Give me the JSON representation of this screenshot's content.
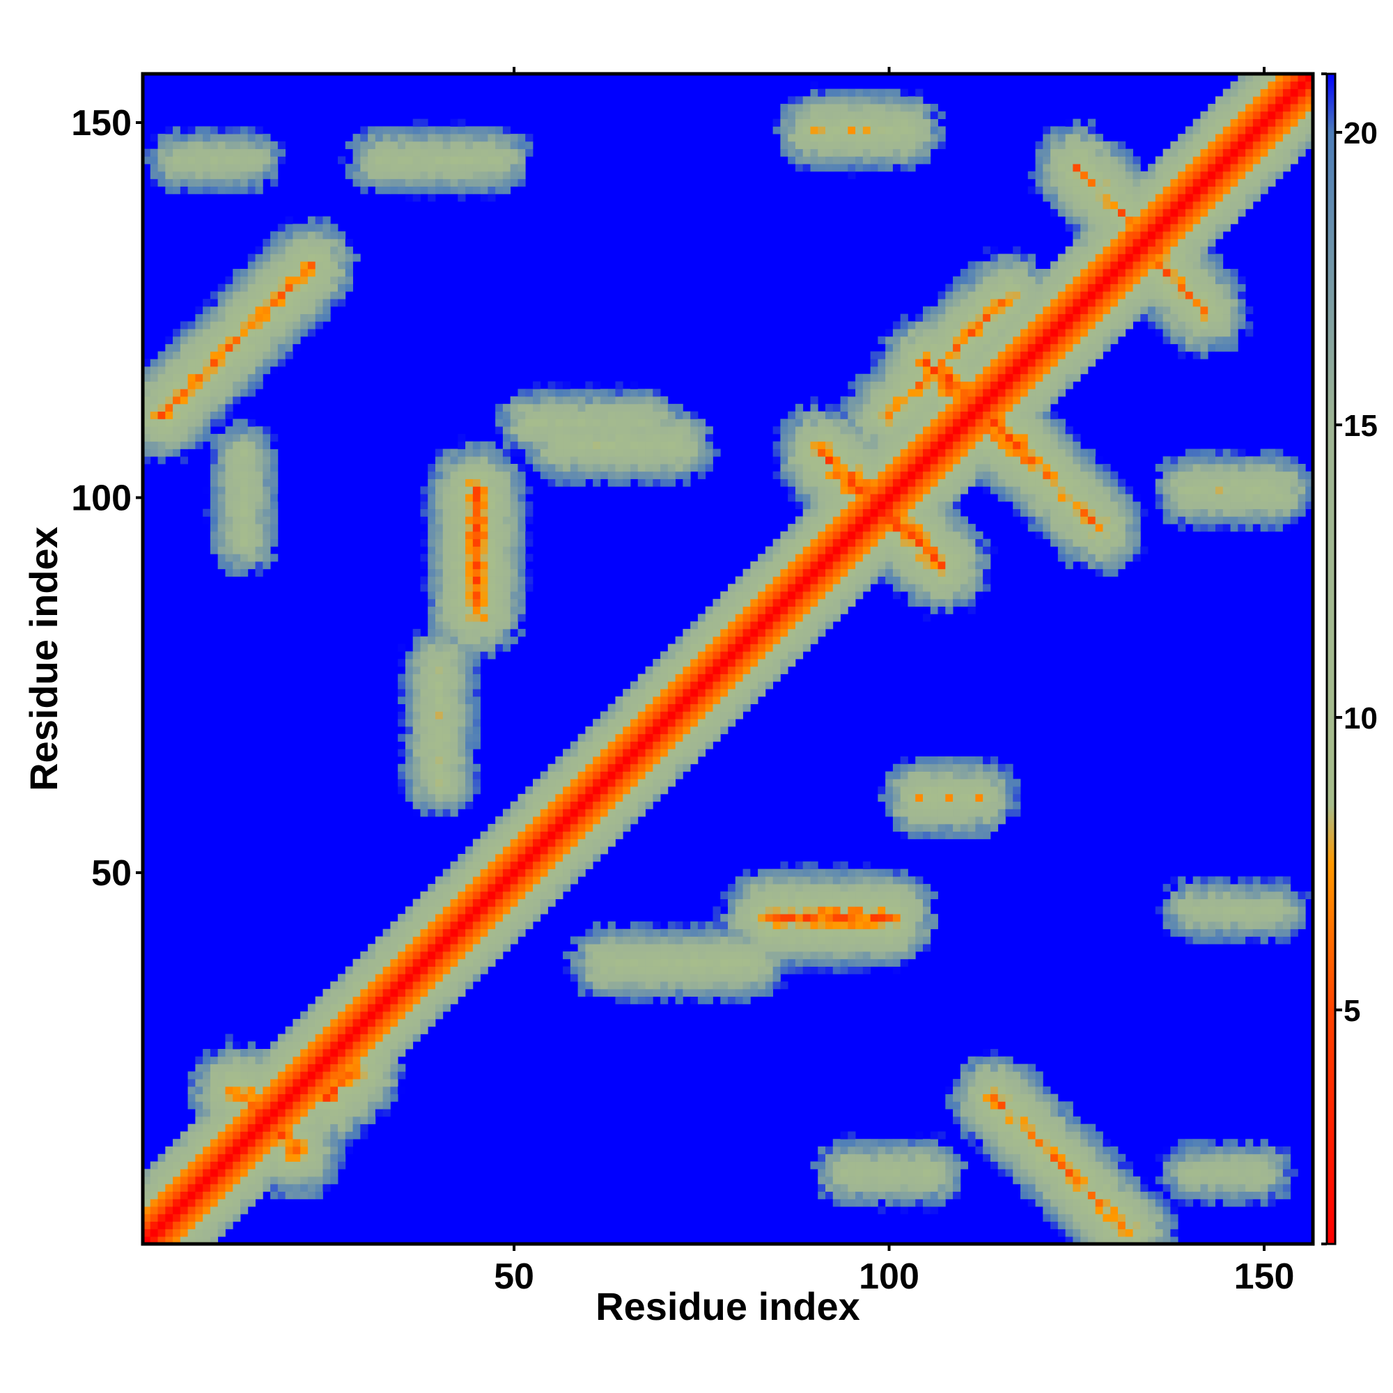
{
  "chart_data": {
    "type": "heatmap",
    "title": "",
    "xlabel": "Residue index",
    "ylabel": "Residue index",
    "n_residues": 156,
    "xlim": [
      1,
      156
    ],
    "ylim": [
      1,
      156
    ],
    "x_ticks": [
      50,
      100,
      150
    ],
    "y_ticks": [
      50,
      100,
      150
    ],
    "x_tick_labels": [
      "50",
      "100",
      "150"
    ],
    "y_tick_labels": [
      "50",
      "100",
      "150"
    ],
    "colorbar": {
      "range": [
        1,
        21
      ],
      "ticks": [
        5,
        10,
        15,
        20
      ],
      "tick_labels": [
        "5",
        "10",
        "15",
        "20"
      ],
      "stops": [
        {
          "value": 1,
          "color": "#ff0000"
        },
        {
          "value": 5,
          "color": "#ff4400"
        },
        {
          "value": 7.5,
          "color": "#ff9900"
        },
        {
          "value": 8.5,
          "color": "#a7bd8c"
        },
        {
          "value": 15,
          "color": "#9fb594"
        },
        {
          "value": 20,
          "color": "#4d7db9"
        },
        {
          "value": 21,
          "color": "#0000ff"
        }
      ]
    },
    "background_color": "#0000ff",
    "diagonal_color": "#ff0000",
    "contact_regions": [
      {
        "i": 10,
        "j": 120,
        "cx": 13,
        "cy": 121,
        "dx": -1,
        "dy": -1,
        "len": 10,
        "w": 5,
        "min": 5
      },
      {
        "i": 108,
        "j": 120,
        "cx": 108,
        "cy": 119,
        "dx": -1,
        "dy": -1,
        "len": 8,
        "w": 4,
        "min": 5
      },
      {
        "i": 10,
        "j": 24,
        "cx": 17,
        "cy": 17,
        "dx": 1,
        "dy": -1,
        "len": 4,
        "w": 3,
        "min": 4
      },
      {
        "i": 28,
        "j": 22,
        "cx": 27,
        "cy": 22,
        "dx": 1,
        "dy": 1,
        "len": 2,
        "w": 2,
        "min": 4
      },
      {
        "i": 47,
        "j": 92,
        "cx": 45,
        "cy": 93,
        "dx": 0,
        "dy": 1,
        "len": 8,
        "w": 3,
        "min": 4
      },
      {
        "i": 90,
        "j": 47,
        "cx": 92,
        "cy": 44,
        "dx": 1,
        "dy": 0,
        "len": 8,
        "w": 3,
        "min": 4
      },
      {
        "i": 95,
        "j": 102,
        "cx": 96,
        "cy": 101,
        "dx": 1,
        "dy": -1,
        "len": 5,
        "w": 3,
        "min": 4
      },
      {
        "i": 101,
        "j": 96,
        "cx": 101,
        "cy": 97,
        "dx": 1,
        "dy": -1,
        "len": 6,
        "w": 3,
        "min": 4
      },
      {
        "i": 122,
        "j": 101,
        "cx": 121,
        "cy": 103,
        "dx": 1,
        "dy": -1,
        "len": 7,
        "w": 3,
        "min": 5
      },
      {
        "i": 121,
        "j": 13,
        "cx": 123,
        "cy": 11,
        "dx": 1,
        "dy": -1,
        "len": 9,
        "w": 4,
        "min": 5
      },
      {
        "i": 135,
        "j": 132,
        "cx": 137,
        "cy": 130,
        "dx": 1,
        "dy": -1,
        "len": 5,
        "w": 3,
        "min": 5
      },
      {
        "i": 132,
        "j": 136,
        "cx": 131,
        "cy": 138,
        "dx": 1,
        "dy": -1,
        "len": 6,
        "w": 3,
        "min": 5
      },
      {
        "i": 112,
        "j": 110,
        "cx": 113,
        "cy": 111,
        "dx": 1,
        "dy": -1,
        "len": 5,
        "w": 3,
        "min": 4
      },
      {
        "i": 110,
        "j": 112,
        "cx": 110,
        "cy": 113,
        "dx": 1,
        "dy": -1,
        "len": 5,
        "w": 3,
        "min": 4
      },
      {
        "i": 96,
        "j": 148,
        "cx": 96,
        "cy": 149,
        "dx": 1,
        "dy": 0,
        "len": 6,
        "w": 4,
        "min": 7
      },
      {
        "i": 65,
        "j": 108,
        "cx": 64,
        "cy": 107,
        "dx": 1,
        "dy": 0,
        "len": 8,
        "w": 5,
        "min": 8
      },
      {
        "i": 40,
        "j": 70,
        "cx": 40,
        "cy": 70,
        "dx": 0,
        "dy": 1,
        "len": 8,
        "w": 6,
        "min": 8
      },
      {
        "i": 70,
        "j": 40,
        "cx": 72,
        "cy": 38,
        "dx": 1,
        "dy": 0,
        "len": 10,
        "w": 6,
        "min": 8
      },
      {
        "i": 108,
        "j": 60,
        "cx": 108,
        "cy": 60,
        "dx": 1,
        "dy": 0,
        "len": 4,
        "w": 4,
        "min": 7
      },
      {
        "i": 146,
        "j": 100,
        "cx": 146,
        "cy": 101,
        "dx": 1,
        "dy": 0,
        "len": 6,
        "w": 6,
        "min": 8
      },
      {
        "i": 146,
        "j": 45,
        "cx": 146,
        "cy": 45,
        "dx": 1,
        "dy": 0,
        "len": 6,
        "w": 6,
        "min": 10
      },
      {
        "i": 145,
        "j": 10,
        "cx": 145,
        "cy": 10,
        "dx": 1,
        "dy": 0,
        "len": 5,
        "w": 4,
        "min": 10
      },
      {
        "i": 10,
        "j": 145,
        "cx": 10,
        "cy": 145,
        "dx": 1,
        "dy": 0,
        "len": 5,
        "w": 4,
        "min": 10
      },
      {
        "i": 40,
        "j": 145,
        "cx": 40,
        "cy": 145,
        "dx": 1,
        "dy": 0,
        "len": 8,
        "w": 5,
        "min": 9
      },
      {
        "i": 14,
        "j": 100,
        "cx": 14,
        "cy": 100,
        "dx": 0,
        "dy": 1,
        "len": 6,
        "w": 5,
        "min": 9
      },
      {
        "i": 100,
        "j": 10,
        "cx": 100,
        "cy": 10,
        "dx": 1,
        "dy": 0,
        "len": 6,
        "w": 5,
        "min": 9
      },
      {
        "i": 60,
        "j": 110,
        "cx": 60,
        "cy": 110,
        "dx": 1,
        "dy": 0,
        "len": 8,
        "w": 5,
        "min": 9
      }
    ]
  }
}
